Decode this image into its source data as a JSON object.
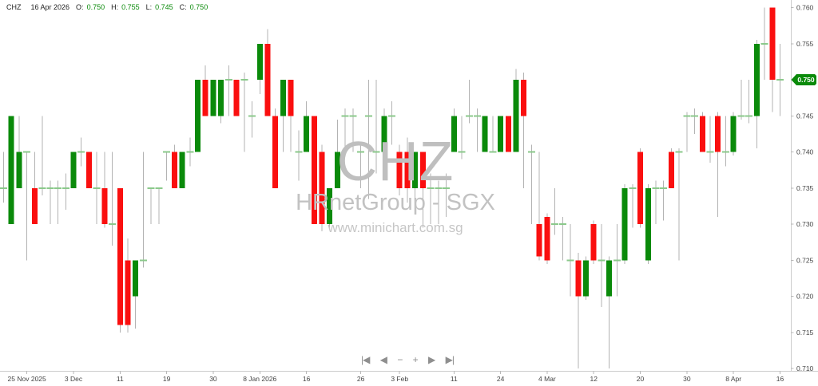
{
  "header": {
    "ticker": "CHZ",
    "date": "16 Apr 2026",
    "open_label": "O:",
    "open": "0.750",
    "high_label": "H:",
    "high": "0.755",
    "low_label": "L:",
    "low": "0.745",
    "close_label": "C:",
    "close": "0.750"
  },
  "watermark": {
    "title": "CHZ",
    "subtitle": "HRnetGroup - SGX",
    "url": "www.minichart.com.sg"
  },
  "nav": {
    "first": "|◀",
    "prev": "◀",
    "zoom_out": "−",
    "zoom_in": "+",
    "next": "▶",
    "last": "▶|"
  },
  "colors": {
    "up": "#0a8a0a",
    "down": "#fa0f0f",
    "wick": "#b3b3b3",
    "doji": "#8bc98b",
    "axis_line": "#cccccc",
    "tick": "#b9b9b9",
    "axis_text": "#444444",
    "badge_bg": "#0a8a0a",
    "badge_text": "#ffffff",
    "background": "#ffffff"
  },
  "chart_data": {
    "type": "candlestick",
    "instrument": "CHZ",
    "company": "HRnetGroup - SGX",
    "ylim": [
      0.71,
      0.76
    ],
    "y_ticks": [
      0.76,
      0.755,
      0.75,
      0.745,
      0.74,
      0.735,
      0.73,
      0.725,
      0.72,
      0.715,
      0.71
    ],
    "last_price": 0.75,
    "last_price_label": "0.750",
    "grid": false,
    "x_ticks": [
      {
        "l": "25 Nov 2025",
        "i": 3
      },
      {
        "l": "3 Dec",
        "i": 9
      },
      {
        "l": "11",
        "i": 15
      },
      {
        "l": "19",
        "i": 21
      },
      {
        "l": "30",
        "i": 27
      },
      {
        "l": "8 Jan 2026",
        "i": 33
      },
      {
        "l": "16",
        "i": 39
      },
      {
        "l": "26",
        "i": 46
      },
      {
        "l": "3 Feb",
        "i": 51
      },
      {
        "l": "11",
        "i": 58
      },
      {
        "l": "24",
        "i": 64
      },
      {
        "l": "4 Mar",
        "i": 70
      },
      {
        "l": "12",
        "i": 76
      },
      {
        "l": "20",
        "i": 82
      },
      {
        "l": "30",
        "i": 88
      },
      {
        "l": "8 Apr",
        "i": 94
      },
      {
        "l": "16",
        "i": 100
      }
    ],
    "candles": [
      [
        0.735,
        0.74,
        0.733,
        0.735
      ],
      [
        0.73,
        0.745,
        0.73,
        0.745
      ],
      [
        0.735,
        0.745,
        0.735,
        0.74
      ],
      [
        0.74,
        0.74,
        0.725,
        0.74
      ],
      [
        0.735,
        0.74,
        0.73,
        0.73
      ],
      [
        0.735,
        0.745,
        0.734,
        0.735
      ],
      [
        0.735,
        0.736,
        0.73,
        0.735
      ],
      [
        0.735,
        0.736,
        0.73,
        0.735
      ],
      [
        0.735,
        0.737,
        0.732,
        0.735
      ],
      [
        0.735,
        0.74,
        0.735,
        0.74
      ],
      [
        0.74,
        0.742,
        0.738,
        0.74
      ],
      [
        0.74,
        0.74,
        0.735,
        0.735
      ],
      [
        0.735,
        0.74,
        0.73,
        0.735
      ],
      [
        0.735,
        0.74,
        0.7295,
        0.73
      ],
      [
        0.73,
        0.74,
        0.727,
        0.73
      ],
      [
        0.735,
        0.735,
        0.715,
        0.716
      ],
      [
        0.725,
        0.728,
        0.715,
        0.716
      ],
      [
        0.72,
        0.725,
        0.7155,
        0.725
      ],
      [
        0.725,
        0.74,
        0.724,
        0.725
      ],
      [
        0.735,
        0.735,
        0.73,
        0.735
      ],
      [
        0.735,
        0.735,
        0.73,
        0.735
      ],
      [
        0.74,
        0.74,
        0.736,
        0.74
      ],
      [
        0.74,
        0.741,
        0.735,
        0.735
      ],
      [
        0.735,
        0.74,
        0.735,
        0.74
      ],
      [
        0.74,
        0.742,
        0.738,
        0.74
      ],
      [
        0.74,
        0.75,
        0.74,
        0.75
      ],
      [
        0.75,
        0.752,
        0.745,
        0.745
      ],
      [
        0.745,
        0.75,
        0.745,
        0.75
      ],
      [
        0.745,
        0.75,
        0.744,
        0.75
      ],
      [
        0.75,
        0.752,
        0.745,
        0.75
      ],
      [
        0.75,
        0.75,
        0.745,
        0.745
      ],
      [
        0.75,
        0.751,
        0.74,
        0.75
      ],
      [
        0.745,
        0.747,
        0.742,
        0.745
      ],
      [
        0.75,
        0.755,
        0.748,
        0.755
      ],
      [
        0.755,
        0.757,
        0.745,
        0.745
      ],
      [
        0.745,
        0.746,
        0.735,
        0.735
      ],
      [
        0.745,
        0.75,
        0.74,
        0.75
      ],
      [
        0.75,
        0.75,
        0.74,
        0.745
      ],
      [
        0.74,
        0.743,
        0.736,
        0.74
      ],
      [
        0.74,
        0.747,
        0.74,
        0.745
      ],
      [
        0.745,
        0.745,
        0.73,
        0.73
      ],
      [
        0.74,
        0.741,
        0.729,
        0.73
      ],
      [
        0.73,
        0.735,
        0.7295,
        0.735
      ],
      [
        0.735,
        0.7445,
        0.735,
        0.74
      ],
      [
        0.745,
        0.746,
        0.74,
        0.745
      ],
      [
        0.745,
        0.746,
        0.74,
        0.745
      ],
      [
        0.74,
        0.741,
        0.735,
        0.74
      ],
      [
        0.745,
        0.75,
        0.7335,
        0.745
      ],
      [
        0.74,
        0.75,
        0.737,
        0.74
      ],
      [
        0.74,
        0.746,
        0.739,
        0.745
      ],
      [
        0.745,
        0.747,
        0.741,
        0.745
      ],
      [
        0.74,
        0.741,
        0.734,
        0.735
      ],
      [
        0.74,
        0.742,
        0.733,
        0.735
      ],
      [
        0.735,
        0.74,
        0.7315,
        0.74
      ],
      [
        0.74,
        0.74,
        0.7295,
        0.735
      ],
      [
        0.735,
        0.737,
        0.73,
        0.735
      ],
      [
        0.735,
        0.736,
        0.73,
        0.735
      ],
      [
        0.735,
        0.737,
        0.731,
        0.735
      ],
      [
        0.74,
        0.746,
        0.74,
        0.745
      ],
      [
        0.74,
        0.745,
        0.739,
        0.74
      ],
      [
        0.745,
        0.75,
        0.744,
        0.745
      ],
      [
        0.745,
        0.746,
        0.74,
        0.745
      ],
      [
        0.74,
        0.745,
        0.74,
        0.745
      ],
      [
        0.74,
        0.745,
        0.74,
        0.74
      ],
      [
        0.74,
        0.745,
        0.74,
        0.745
      ],
      [
        0.745,
        0.745,
        0.74,
        0.74
      ],
      [
        0.74,
        0.7515,
        0.74,
        0.75
      ],
      [
        0.75,
        0.751,
        0.735,
        0.745
      ],
      [
        0.74,
        0.741,
        0.73,
        0.74
      ],
      [
        0.73,
        0.74,
        0.725,
        0.7255
      ],
      [
        0.731,
        0.7315,
        0.7245,
        0.725
      ],
      [
        0.73,
        0.735,
        0.7285,
        0.73
      ],
      [
        0.73,
        0.731,
        0.725,
        0.73
      ],
      [
        0.725,
        0.73,
        0.72,
        0.725
      ],
      [
        0.725,
        0.726,
        0.71,
        0.72
      ],
      [
        0.72,
        0.7255,
        0.7195,
        0.725
      ],
      [
        0.73,
        0.7305,
        0.7245,
        0.725
      ],
      [
        0.725,
        0.73,
        0.7185,
        0.725
      ],
      [
        0.72,
        0.7255,
        0.71,
        0.725
      ],
      [
        0.725,
        0.73,
        0.72,
        0.725
      ],
      [
        0.725,
        0.7355,
        0.7245,
        0.735
      ],
      [
        0.735,
        0.7355,
        0.7295,
        0.735
      ],
      [
        0.74,
        0.7405,
        0.7295,
        0.73
      ],
      [
        0.725,
        0.7355,
        0.7245,
        0.735
      ],
      [
        0.735,
        0.736,
        0.73,
        0.735
      ],
      [
        0.735,
        0.736,
        0.7305,
        0.735
      ],
      [
        0.74,
        0.7405,
        0.735,
        0.735
      ],
      [
        0.74,
        0.7405,
        0.725,
        0.74
      ],
      [
        0.745,
        0.7455,
        0.74,
        0.745
      ],
      [
        0.745,
        0.746,
        0.7425,
        0.745
      ],
      [
        0.745,
        0.7455,
        0.74,
        0.74
      ],
      [
        0.74,
        0.745,
        0.7385,
        0.74
      ],
      [
        0.745,
        0.7455,
        0.731,
        0.74
      ],
      [
        0.74,
        0.745,
        0.738,
        0.74
      ],
      [
        0.74,
        0.7455,
        0.7395,
        0.745
      ],
      [
        0.745,
        0.75,
        0.7445,
        0.745
      ],
      [
        0.745,
        0.75,
        0.744,
        0.745
      ],
      [
        0.745,
        0.7555,
        0.7405,
        0.755
      ],
      [
        0.755,
        0.76,
        0.75,
        0.755
      ],
      [
        0.76,
        0.76,
        0.7455,
        0.75
      ],
      [
        0.75,
        0.755,
        0.745,
        0.75
      ]
    ]
  }
}
